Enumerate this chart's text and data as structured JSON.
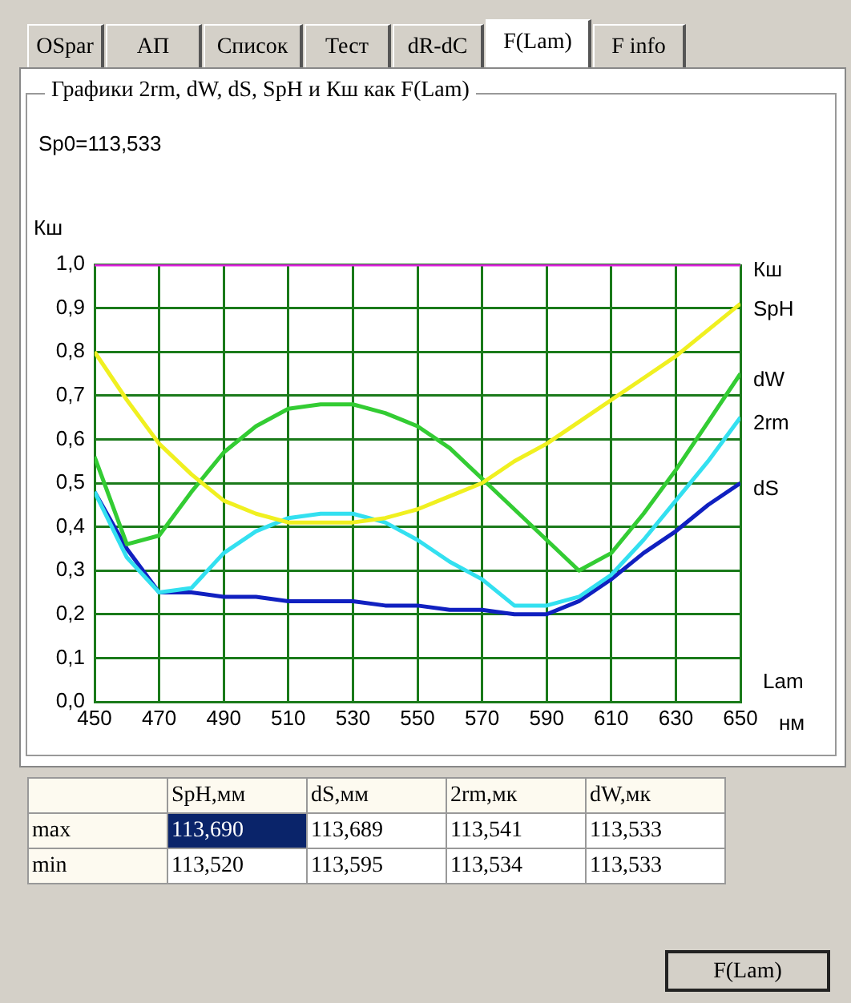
{
  "chart_data": {
    "type": "line",
    "title": "Графики 2rm, dW, dS, SpH и Кш как F(Lam)",
    "xlabel": "Lam",
    "ylabel": "Кш",
    "x": [
      450,
      460,
      470,
      480,
      490,
      500,
      510,
      520,
      530,
      540,
      550,
      560,
      570,
      580,
      590,
      600,
      610,
      620,
      630,
      640,
      650
    ],
    "series": [
      {
        "name": "Кш",
        "color": "#e020e0",
        "values": [
          1,
          1,
          1,
          1,
          1,
          1,
          1,
          1,
          1,
          1,
          1,
          1,
          1,
          1,
          1,
          1,
          1,
          1,
          1,
          1,
          1
        ]
      },
      {
        "name": "SpH",
        "color": "#f0f020",
        "values": [
          0.8,
          0.69,
          0.59,
          0.52,
          0.46,
          0.43,
          0.41,
          0.41,
          0.41,
          0.42,
          0.44,
          0.47,
          0.5,
          0.55,
          0.59,
          0.64,
          0.69,
          0.74,
          0.79,
          0.85,
          0.91
        ]
      },
      {
        "name": "dW",
        "color": "#33cc33",
        "values": [
          0.56,
          0.36,
          0.38,
          0.48,
          0.57,
          0.63,
          0.67,
          0.68,
          0.68,
          0.66,
          0.63,
          0.58,
          0.51,
          0.44,
          0.37,
          0.3,
          0.34,
          0.43,
          0.53,
          0.64,
          0.75
        ]
      },
      {
        "name": "2rm",
        "color": "#33e0f0",
        "values": [
          0.48,
          0.33,
          0.25,
          0.26,
          0.34,
          0.39,
          0.42,
          0.43,
          0.43,
          0.41,
          0.37,
          0.32,
          0.28,
          0.22,
          0.22,
          0.24,
          0.29,
          0.37,
          0.46,
          0.55,
          0.65
        ]
      },
      {
        "name": "dS",
        "color": "#1020c0",
        "values": [
          0.48,
          0.35,
          0.25,
          0.25,
          0.24,
          0.24,
          0.23,
          0.23,
          0.23,
          0.22,
          0.22,
          0.21,
          0.21,
          0.2,
          0.2,
          0.23,
          0.28,
          0.34,
          0.39,
          0.45,
          0.5
        ]
      }
    ],
    "xlim": [
      450,
      650
    ],
    "xticks": [
      450,
      470,
      490,
      510,
      530,
      550,
      570,
      590,
      610,
      630,
      650
    ],
    "ylim": [
      0,
      1
    ],
    "yticks": [
      {
        "value": 0,
        "label": "0,0"
      },
      {
        "value": 0.1,
        "label": "0,1"
      },
      {
        "value": 0.2,
        "label": "0,2"
      },
      {
        "value": 0.3,
        "label": "0,3"
      },
      {
        "value": 0.4,
        "label": "0,4"
      },
      {
        "value": 0.5,
        "label": "0,5"
      },
      {
        "value": 0.6,
        "label": "0,6"
      },
      {
        "value": 0.7,
        "label": "0,7"
      },
      {
        "value": 0.8,
        "label": "0,8"
      },
      {
        "value": 0.9,
        "label": "0,9"
      },
      {
        "value": 1,
        "label": "1,0"
      }
    ],
    "grid": true,
    "legend": false,
    "marker": "none",
    "line_style": "solid",
    "annotations": [
      "OSpar",
      "АП",
      "Список",
      "Тест",
      "dR-dC",
      "F(Lam)",
      "F info",
      "Sp0=113,533",
      "нм",
      "SpH,мм",
      "dS,мм",
      "2rm,мк",
      "dW,мк",
      "max",
      "113,690",
      "113,689",
      "113,541",
      "113,533",
      "min",
      "113,520",
      "113,595",
      "113,534",
      "113,533",
      "F(Lam)"
    ]
  }
}
